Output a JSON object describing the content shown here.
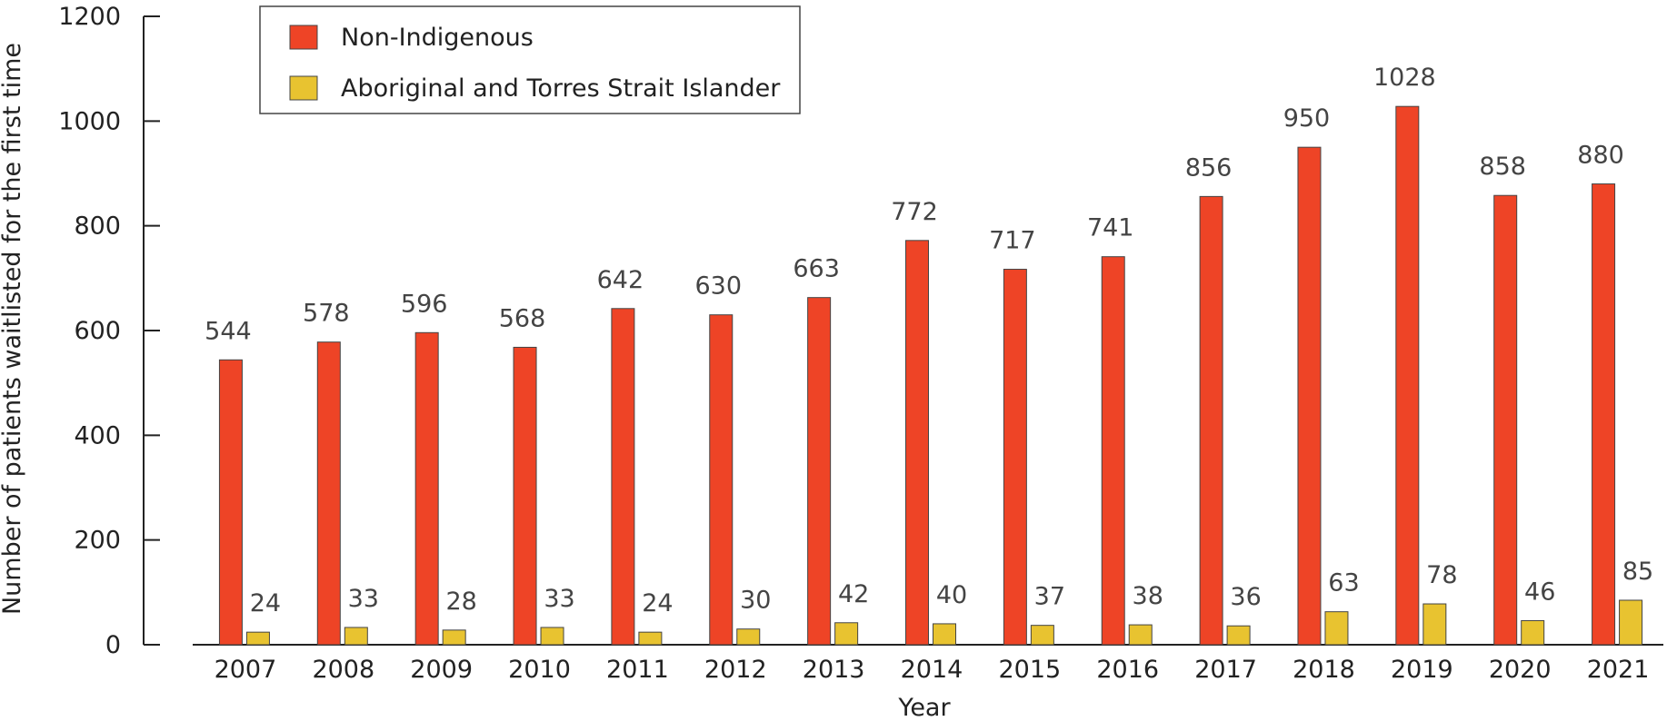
{
  "chart_data": {
    "type": "bar",
    "title": "",
    "xlabel": "Year",
    "ylabel": "Number of patients waitlisted for the first time",
    "ylim": [
      0,
      1200
    ],
    "yticks": [
      0,
      200,
      400,
      600,
      800,
      1000,
      1200
    ],
    "grid": false,
    "legend_position": "top-left",
    "categories": [
      "2007",
      "2008",
      "2009",
      "2010",
      "2011",
      "2012",
      "2013",
      "2014",
      "2015",
      "2016",
      "2017",
      "2018",
      "2019",
      "2020",
      "2021"
    ],
    "series": [
      {
        "name": "Non-Indigenous",
        "color": "#ee4426",
        "values": [
          544,
          578,
          596,
          568,
          642,
          630,
          663,
          772,
          717,
          741,
          856,
          950,
          1028,
          858,
          880
        ]
      },
      {
        "name": "Aboriginal and Torres Strait Islander",
        "color": "#e8c330",
        "values": [
          24,
          33,
          28,
          33,
          24,
          30,
          42,
          40,
          37,
          38,
          36,
          63,
          78,
          46,
          85
        ]
      }
    ]
  }
}
